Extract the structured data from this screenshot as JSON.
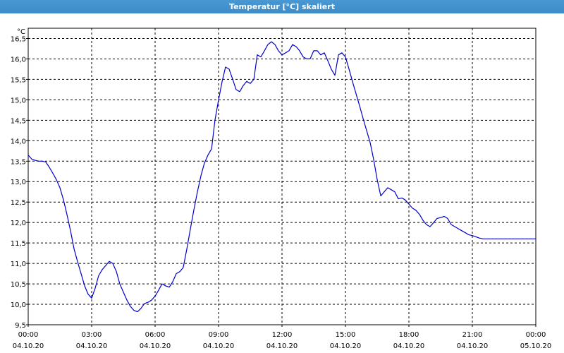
{
  "window": {
    "title": "Temperatur [°C] skaliert"
  },
  "chart_data": {
    "type": "line",
    "title": "Temperatur [°C] skaliert",
    "ylabel": "°C",
    "xlabel": "",
    "ylim": [
      9.5,
      16.75
    ],
    "yticks": [
      16.5,
      16.0,
      15.5,
      15.0,
      14.5,
      14.0,
      13.5,
      13.0,
      12.5,
      12.0,
      11.5,
      11.0,
      10.5,
      10.0,
      9.5
    ],
    "ytick_labels": [
      "16,5",
      "16,0",
      "15,5",
      "15,0",
      "14,5",
      "14,0",
      "13,5",
      "13,0",
      "12,5",
      "12,0",
      "11,5",
      "11,0",
      "10,5",
      "10,0",
      "9,5"
    ],
    "xlim": [
      0,
      24
    ],
    "xticks": [
      0,
      3,
      6,
      9,
      12,
      15,
      18,
      21,
      24
    ],
    "xtick_time_labels": [
      "00:00",
      "03:00",
      "06:00",
      "09:00",
      "12:00",
      "15:00",
      "18:00",
      "21:00",
      "00:00"
    ],
    "xtick_date_labels": [
      "04.10.20",
      "04.10.20",
      "04.10.20",
      "04.10.20",
      "04.10.20",
      "04.10.20",
      "04.10.20",
      "04.10.20",
      "05.10.20"
    ],
    "grid": true,
    "series": [
      {
        "color": "#0000cc",
        "x": [
          0,
          0.17,
          0.33,
          0.5,
          0.67,
          0.83,
          1.0,
          1.17,
          1.33,
          1.5,
          1.67,
          1.83,
          2.0,
          2.17,
          2.33,
          2.5,
          2.67,
          2.83,
          3.0,
          3.17,
          3.33,
          3.5,
          3.67,
          3.83,
          4.0,
          4.17,
          4.33,
          4.5,
          4.67,
          4.83,
          5.0,
          5.17,
          5.33,
          5.5,
          5.67,
          5.83,
          6.0,
          6.17,
          6.33,
          6.5,
          6.67,
          6.83,
          7.0,
          7.17,
          7.33,
          7.5,
          7.67,
          7.83,
          8.0,
          8.17,
          8.33,
          8.5,
          8.67,
          8.83,
          9.0,
          9.17,
          9.33,
          9.5,
          9.67,
          9.83,
          10.0,
          10.17,
          10.33,
          10.5,
          10.67,
          10.83,
          11.0,
          11.17,
          11.33,
          11.5,
          11.67,
          11.83,
          12.0,
          12.17,
          12.33,
          12.5,
          12.67,
          12.83,
          13.0,
          13.17,
          13.33,
          13.5,
          13.67,
          13.83,
          14.0,
          14.17,
          14.33,
          14.5,
          14.67,
          14.83,
          15.0,
          15.17,
          15.33,
          15.5,
          15.67,
          15.83,
          16.0,
          16.17,
          16.33,
          16.5,
          16.67,
          16.83,
          17.0,
          17.17,
          17.33,
          17.5,
          17.67,
          17.83,
          18.0,
          18.17,
          18.33,
          18.5,
          18.67,
          18.83,
          19.0,
          19.17,
          19.33,
          19.5,
          19.67,
          19.83,
          20.0,
          20.17,
          20.33,
          20.5,
          20.67,
          20.83,
          21.0,
          21.17,
          21.33,
          21.5,
          21.67,
          21.83,
          22.0,
          22.17,
          22.33,
          22.5,
          22.67,
          22.83,
          23.0,
          23.17,
          23.33,
          23.5,
          23.67,
          23.83,
          24.0
        ],
        "y": [
          13.65,
          13.55,
          13.52,
          13.5,
          13.5,
          13.48,
          13.35,
          13.2,
          13.05,
          12.85,
          12.55,
          12.2,
          11.8,
          11.35,
          11.05,
          10.75,
          10.45,
          10.25,
          10.15,
          10.4,
          10.7,
          10.85,
          10.95,
          11.05,
          11.0,
          10.8,
          10.5,
          10.3,
          10.1,
          9.95,
          9.85,
          9.82,
          9.9,
          10.02,
          10.05,
          10.1,
          10.2,
          10.35,
          10.5,
          10.45,
          10.42,
          10.55,
          10.75,
          10.8,
          10.9,
          11.35,
          11.85,
          12.3,
          12.75,
          13.15,
          13.45,
          13.65,
          13.8,
          14.5,
          15.0,
          15.45,
          15.8,
          15.75,
          15.5,
          15.25,
          15.2,
          15.35,
          15.45,
          15.4,
          15.5,
          16.1,
          16.05,
          16.2,
          16.35,
          16.42,
          16.35,
          16.2,
          16.1,
          16.15,
          16.2,
          16.35,
          16.3,
          16.2,
          16.05,
          16.0,
          16.0,
          16.2,
          16.2,
          16.1,
          16.15,
          15.95,
          15.75,
          15.6,
          16.1,
          16.15,
          16.05,
          15.75,
          15.45,
          15.15,
          14.85,
          14.55,
          14.25,
          13.95,
          13.55,
          13.05,
          12.65,
          12.75,
          12.85,
          12.8,
          12.75,
          12.58,
          12.6,
          12.55,
          12.45,
          12.35,
          12.3,
          12.2,
          12.05,
          11.95,
          11.9,
          12.0,
          12.1,
          12.12,
          12.15,
          12.1,
          11.95,
          11.9,
          11.85,
          11.8,
          11.75,
          11.7,
          11.68,
          11.65,
          11.62,
          11.6,
          11.6,
          11.6,
          11.6,
          11.6,
          11.6,
          11.6,
          11.6,
          11.6,
          11.6,
          11.6,
          11.6,
          11.6,
          11.6,
          11.6,
          11.6
        ]
      }
    ]
  }
}
